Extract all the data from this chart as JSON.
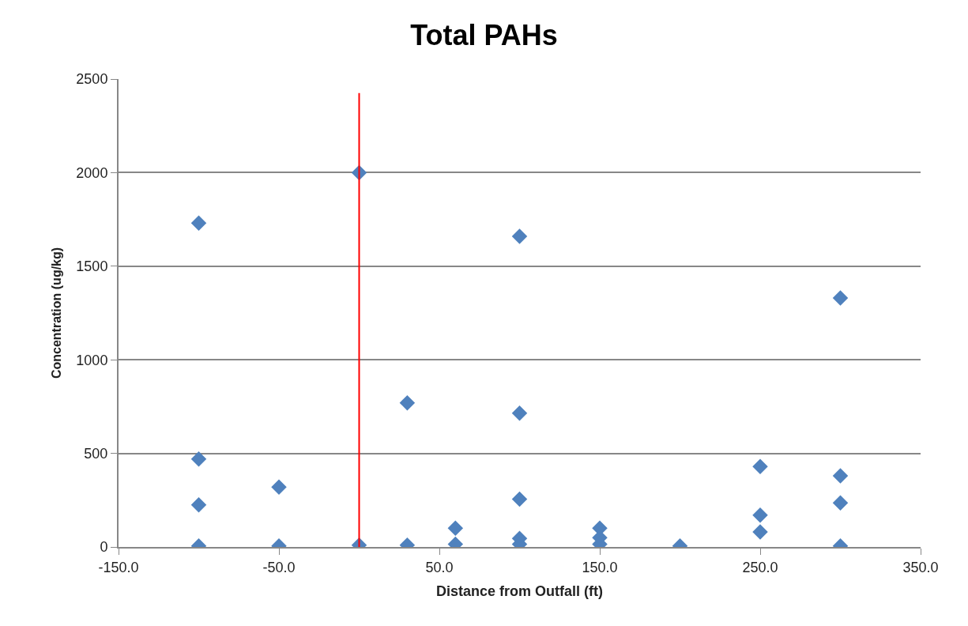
{
  "chart_data": {
    "type": "scatter",
    "title": "Total PAHs",
    "xlabel": "Distance from Outfall (ft)",
    "ylabel": "Concentration (ug/kg)",
    "x": [
      -100,
      -100,
      -100,
      -100,
      -50,
      -50,
      0,
      0,
      30,
      30,
      60,
      60,
      100,
      100,
      100,
      100,
      100,
      150,
      150,
      150,
      200,
      250,
      250,
      250,
      300,
      300,
      300,
      300
    ],
    "series": [
      {
        "color": "#4f81bd",
        "values": [
          1730,
          470,
          225,
          5,
          320,
          5,
          2000,
          10,
          770,
          10,
          100,
          15,
          1660,
          715,
          255,
          45,
          15,
          100,
          50,
          15,
          5,
          430,
          170,
          80,
          1330,
          380,
          235,
          5
        ]
      }
    ],
    "xlim": [
      -150,
      350
    ],
    "xticks": [
      {
        "value": -150,
        "label": "-150.0"
      },
      {
        "value": -50,
        "label": "-50.0"
      },
      {
        "value": 50,
        "label": "50.0"
      },
      {
        "value": 150,
        "label": "150.0"
      },
      {
        "value": 250,
        "label": "250.0"
      },
      {
        "value": 350,
        "label": "350.0"
      }
    ],
    "ylim": [
      0,
      2500
    ],
    "yticks": [
      0,
      500,
      1000,
      1500,
      2000,
      2500
    ],
    "ref_lines": [
      {
        "axis": "x",
        "value": 0,
        "color": "#ff0000",
        "line_style": "solid"
      }
    ],
    "grid": "y",
    "marker": "diamond"
  }
}
